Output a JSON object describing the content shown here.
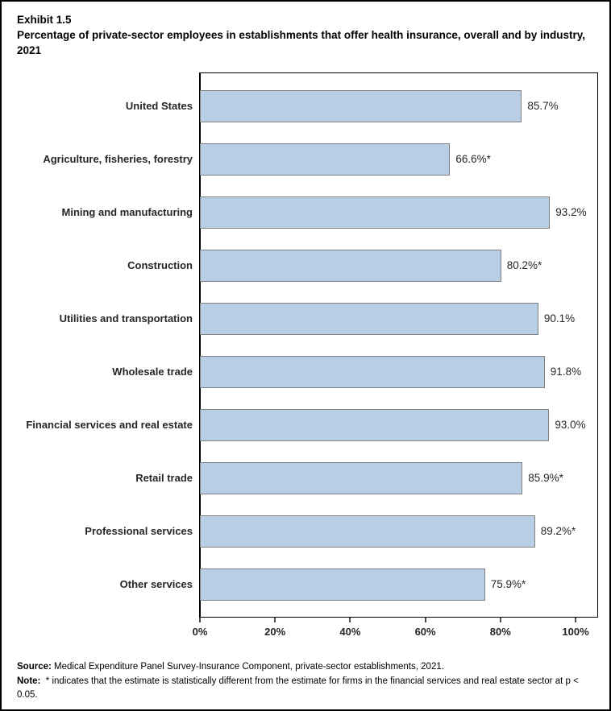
{
  "title": {
    "exhibit": "Exhibit 1.5",
    "text": "Percentage of private-sector employees in establishments that offer health insurance, overall and by industry, 2021"
  },
  "chart_data": {
    "type": "bar",
    "orientation": "horizontal",
    "title": "Percentage of private-sector employees in establishments that offer health insurance, overall and by industry, 2021",
    "categories": [
      "United States",
      "Agriculture, fisheries, forestry",
      "Mining and manufacturing",
      "Construction",
      "Utilities and transportation",
      "Wholesale trade",
      "Financial services and real estate",
      "Retail trade",
      "Professional services",
      "Other services"
    ],
    "values": [
      85.7,
      66.6,
      93.2,
      80.2,
      90.1,
      91.8,
      93.0,
      85.9,
      89.2,
      75.9
    ],
    "value_labels": [
      "85.7%",
      "66.6%*",
      "93.2%",
      "80.2%*",
      "90.1%",
      "91.8%",
      "93.0%",
      "85.9%*",
      "89.2%*",
      "75.9%*"
    ],
    "xlabel": "",
    "ylabel": "",
    "xlim": [
      0,
      100
    ],
    "x_tick_values": [
      0,
      20,
      40,
      60,
      80,
      100
    ],
    "x_tick_labels": [
      "0%",
      "20%",
      "40%",
      "60%",
      "80%",
      "100%"
    ],
    "grid": "off",
    "legend": "none",
    "bar_color": "#B9CDE5",
    "bar_border_color": "#808080"
  },
  "footer": {
    "source_label": "Source:",
    "source_text": "Medical Expenditure Panel Survey-Insurance Component, private-sector establishments, 2021.",
    "note_label": "Note:",
    "note_text": "* indicates that the estimate is statistically different from the estimate for firms in the financial services and real estate sector at p < 0.05."
  }
}
